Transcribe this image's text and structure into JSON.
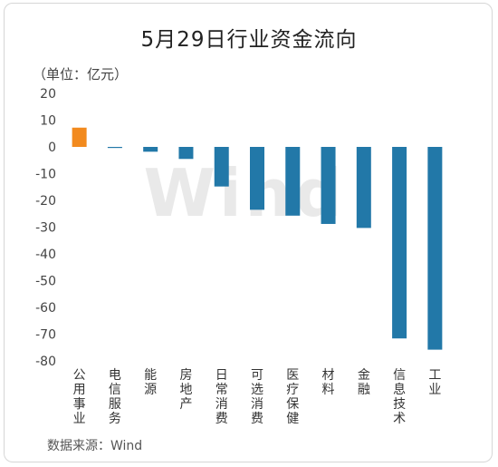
{
  "chart_data": {
    "type": "bar",
    "title": "5月29日行业资金流向",
    "unit_label": "（单位：亿元）",
    "source": "数据来源：Wind",
    "watermark": "Wind",
    "categories": [
      "公用事业",
      "电信服务",
      "能源",
      "房地产",
      "日常消费",
      "可选消费",
      "医疗保健",
      "材料",
      "金融",
      "信息技术",
      "工业"
    ],
    "values": [
      7.2,
      -0.4,
      -1.8,
      -4.5,
      -14.8,
      -23.5,
      -25.7,
      -28.8,
      -30.3,
      -71.6,
      -75.8
    ],
    "ylim": [
      -80,
      20
    ],
    "yticks": [
      20,
      10,
      0,
      -10,
      -20,
      -30,
      -40,
      -50,
      -60,
      -70,
      -80
    ],
    "colors": {
      "positive": "#f28a1e",
      "negative": "#2278a8"
    },
    "grid": false,
    "legend": "none"
  }
}
